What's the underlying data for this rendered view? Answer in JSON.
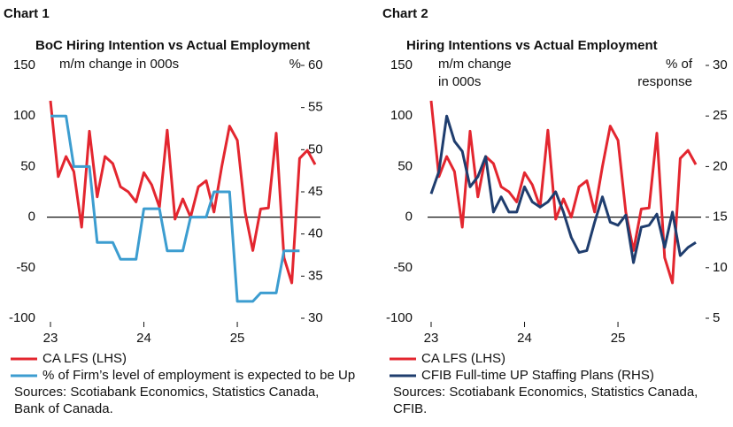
{
  "chart_data": [
    {
      "type": "line",
      "chart_label": "Chart 1",
      "title": "BoC Hiring Intention vs Actual Employment",
      "y_label": [
        "m/m change in 000s"
      ],
      "y2_label": [
        "%"
      ],
      "categories": [
        "23",
        null,
        null,
        null,
        null,
        null,
        null,
        null,
        null,
        null,
        null,
        null,
        "24",
        null,
        null,
        null,
        null,
        null,
        null,
        null,
        null,
        null,
        null,
        null,
        "25",
        null,
        null,
        null,
        null,
        null,
        null,
        null,
        null,
        null,
        null
      ],
      "ylim": [
        -100,
        150
      ],
      "yticks": [
        -100,
        -50,
        0,
        50,
        100,
        150
      ],
      "y2lim": [
        30,
        60
      ],
      "y2ticks": [
        30,
        35,
        40,
        45,
        50,
        55,
        60
      ],
      "series": [
        {
          "name": "CA LFS (LHS)",
          "color": "#e3262f",
          "values": [
            115,
            40,
            60,
            45,
            -10,
            85,
            20,
            60,
            53,
            30,
            25,
            15,
            44,
            32,
            10,
            86,
            -2,
            18,
            0,
            30,
            36,
            5,
            50,
            90,
            76,
            5,
            -33,
            8,
            9,
            83,
            -40,
            -65,
            58,
            66,
            52
          ]
        },
        {
          "name": "% of Firm’s level of employment is expected to be Up",
          "color": "#3c9dd0",
          "axis": "y2",
          "values": [
            54,
            54,
            54,
            48,
            48,
            48,
            39,
            39,
            39,
            37,
            37,
            37,
            43,
            43,
            43,
            38,
            38,
            38,
            42,
            42,
            42,
            45,
            45,
            45,
            32,
            32,
            32,
            33,
            33,
            33,
            38,
            38,
            38,
            null,
            null
          ]
        }
      ],
      "source": [
        "Sources: Scotiabank Economics, Statistics Canada,",
        "Bank of Canada."
      ]
    },
    {
      "type": "line",
      "chart_label": "Chart 2",
      "title": "Hiring Intentions vs Actual Employment",
      "y_label": [
        "m/m change",
        "in 000s"
      ],
      "y2_label": [
        "% of",
        "response"
      ],
      "categories": [
        "23",
        null,
        null,
        null,
        null,
        null,
        null,
        null,
        null,
        null,
        null,
        null,
        "24",
        null,
        null,
        null,
        null,
        null,
        null,
        null,
        null,
        null,
        null,
        null,
        "25",
        null,
        null,
        null,
        null,
        null,
        null,
        null,
        null,
        null,
        null
      ],
      "ylim": [
        -100,
        150
      ],
      "yticks": [
        -100,
        -50,
        0,
        50,
        100,
        150
      ],
      "y2lim": [
        5,
        30
      ],
      "y2ticks": [
        5,
        10,
        15,
        20,
        25,
        30
      ],
      "series": [
        {
          "name": "CA LFS (LHS)",
          "color": "#e3262f",
          "values": [
            115,
            40,
            60,
            45,
            -10,
            85,
            20,
            60,
            53,
            30,
            25,
            15,
            44,
            32,
            10,
            86,
            -2,
            18,
            0,
            30,
            36,
            5,
            50,
            90,
            76,
            5,
            -33,
            8,
            9,
            83,
            -40,
            -65,
            58,
            66,
            52
          ]
        },
        {
          "name": "CFIB Full-time UP Staffing Plans (RHS)",
          "color": "#1f3d6e",
          "axis": "y2",
          "values": [
            17.3,
            19.5,
            25,
            22.5,
            21.5,
            18,
            19,
            21,
            15.5,
            17,
            15.5,
            15.5,
            18,
            16.5,
            16,
            16.5,
            17.5,
            15.5,
            13,
            11.5,
            11.7,
            14.5,
            17,
            14.5,
            14.2,
            15.2,
            10.5,
            14,
            14.2,
            15.3,
            12,
            15.5,
            11.2,
            12,
            12.5
          ]
        }
      ],
      "source": [
        "Sources: Scotiabank Economics, Statistics Canada,",
        "CFIB."
      ]
    }
  ]
}
